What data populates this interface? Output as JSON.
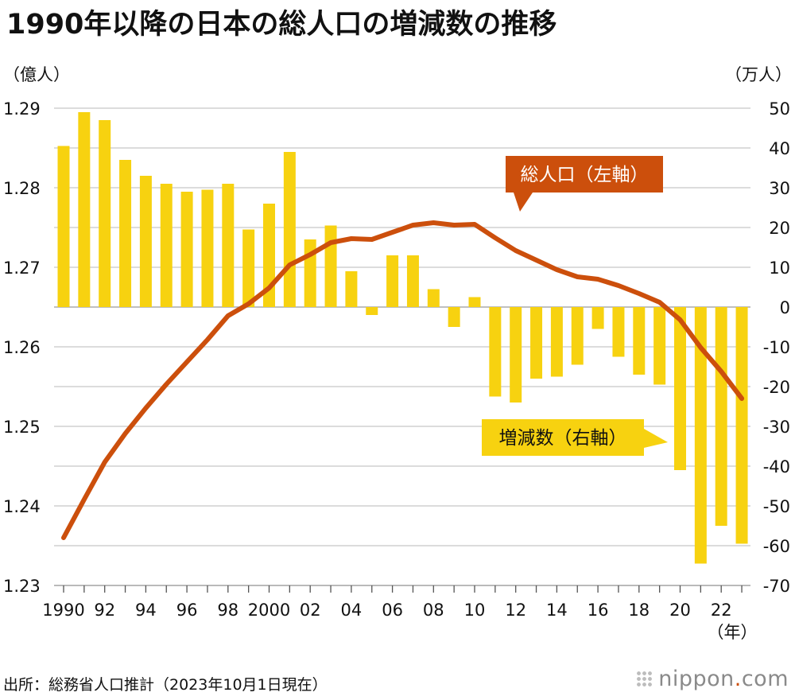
{
  "header": {
    "title": "1990年以降の日本の総人口の増減数の推移"
  },
  "footer": {
    "source": "出所：総務省人口推計（2023年10月1日現在）",
    "logo_main": "nippon",
    "logo_dot": ".",
    "logo_com": "com"
  },
  "chart_data": {
    "type": "bar+line",
    "title": "1990年以降の日本の総人口の増減数の推移",
    "left_axis": {
      "unit_label": "（億人）",
      "ticks": [
        "1.29",
        "1.28",
        "1.27",
        "1.26",
        "1.25",
        "1.24",
        "1.23"
      ],
      "ylim": [
        1.23,
        1.29
      ]
    },
    "right_axis": {
      "unit_label": "（万人）",
      "ticks": [
        "50",
        "40",
        "30",
        "20",
        "10",
        "0",
        "-10",
        "-20",
        "-30",
        "-40",
        "-50",
        "-60",
        "-70"
      ],
      "ylim": [
        -70,
        50
      ]
    },
    "x_unit_label": "（年）",
    "x_tick_labels": [
      "1990",
      "92",
      "94",
      "96",
      "98",
      "2000",
      "02",
      "04",
      "06",
      "08",
      "10",
      "12",
      "14",
      "16",
      "18",
      "20",
      "22"
    ],
    "years": [
      1990,
      1991,
      1992,
      1993,
      1994,
      1995,
      1996,
      1997,
      1998,
      1999,
      2000,
      2001,
      2002,
      2003,
      2004,
      2005,
      2006,
      2007,
      2008,
      2009,
      2010,
      2011,
      2012,
      2013,
      2014,
      2015,
      2016,
      2017,
      2018,
      2019,
      2020,
      2021,
      2022,
      2023
    ],
    "series": [
      {
        "name": "増減数（右軸）",
        "type": "bar",
        "axis": "right",
        "color": "#f7d210",
        "values": [
          40.5,
          49,
          47,
          37,
          33,
          31,
          29,
          29.5,
          31,
          19.5,
          26,
          39,
          17,
          20.5,
          9,
          -2,
          13,
          13,
          4.5,
          -5,
          2.5,
          -22.5,
          -24,
          -18,
          -17.5,
          -14.5,
          -5.5,
          -12.5,
          -17,
          -19.5,
          -41,
          -64.5,
          -55,
          -59.5
        ]
      },
      {
        "name": "総人口（左軸）",
        "type": "line",
        "axis": "left",
        "color": "#cc4f0c",
        "values": [
          1.236,
          1.2408,
          1.2455,
          1.2491,
          1.2523,
          1.2553,
          1.2581,
          1.2609,
          1.2639,
          1.2654,
          1.2674,
          1.2703,
          1.2716,
          1.2731,
          1.2736,
          1.2735,
          1.2744,
          1.2753,
          1.2756,
          1.2753,
          1.2754,
          1.2737,
          1.2721,
          1.2709,
          1.2697,
          1.2688,
          1.2685,
          1.2677,
          1.2667,
          1.2656,
          1.2634,
          1.2599,
          1.2569,
          1.2535
        ]
      }
    ],
    "callouts": {
      "line_label": "総人口（左軸）",
      "bar_label": "増減数（右軸）"
    },
    "grid": true
  }
}
